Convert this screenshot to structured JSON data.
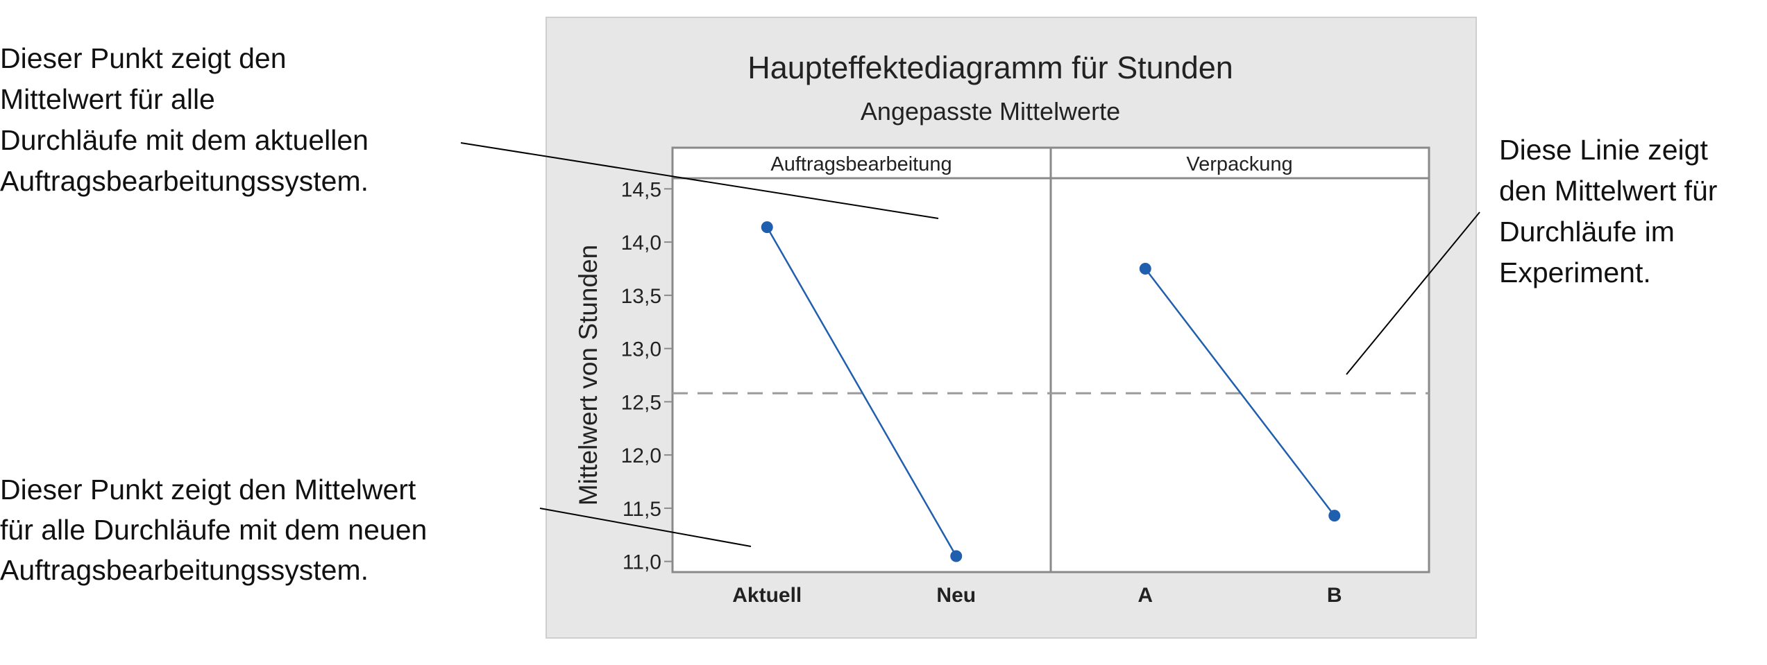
{
  "chart_data": {
    "type": "line",
    "title": "Haupteffektediagramm für Stunden",
    "subtitle": "Angepasste Mittelwerte",
    "ylabel": "Mittelwert von Stunden",
    "ylim": [
      10.9,
      14.6
    ],
    "yticks": [
      "11,0",
      "11,5",
      "12,0",
      "12,5",
      "13,0",
      "13,5",
      "14,0",
      "14,5"
    ],
    "ytick_values": [
      11.0,
      11.5,
      12.0,
      12.5,
      13.0,
      13.5,
      14.0,
      14.5
    ],
    "overall_mean": 12.58,
    "grid": false,
    "colors": {
      "series": "#1f5fae",
      "mean_line": "#9a9a9a",
      "chart_bg": "#e7e7e7",
      "panel_bg": "#ffffff"
    },
    "panels": [
      {
        "name": "Auftragsbearbeitung",
        "categories": [
          "Aktuell",
          "Neu"
        ],
        "values": [
          14.14,
          11.05
        ]
      },
      {
        "name": "Verpackung",
        "categories": [
          "A",
          "B"
        ],
        "values": [
          13.75,
          11.43
        ]
      }
    ]
  },
  "annotations": [
    {
      "lines": [
        "Dieser Punkt zeigt den",
        "Mittelwert für alle",
        "Durchläufe mit dem aktuellen",
        "Auftragsbearbeitungssystem."
      ]
    },
    {
      "lines": [
        "Dieser Punkt zeigt den Mittelwert",
        "für alle Durchläufe mit dem neuen",
        "Auftragsbearbeitungssystem."
      ]
    },
    {
      "lines": [
        "Diese Linie zeigt",
        "den Mittelwert für",
        "Durchläufe im",
        "Experiment."
      ]
    }
  ]
}
